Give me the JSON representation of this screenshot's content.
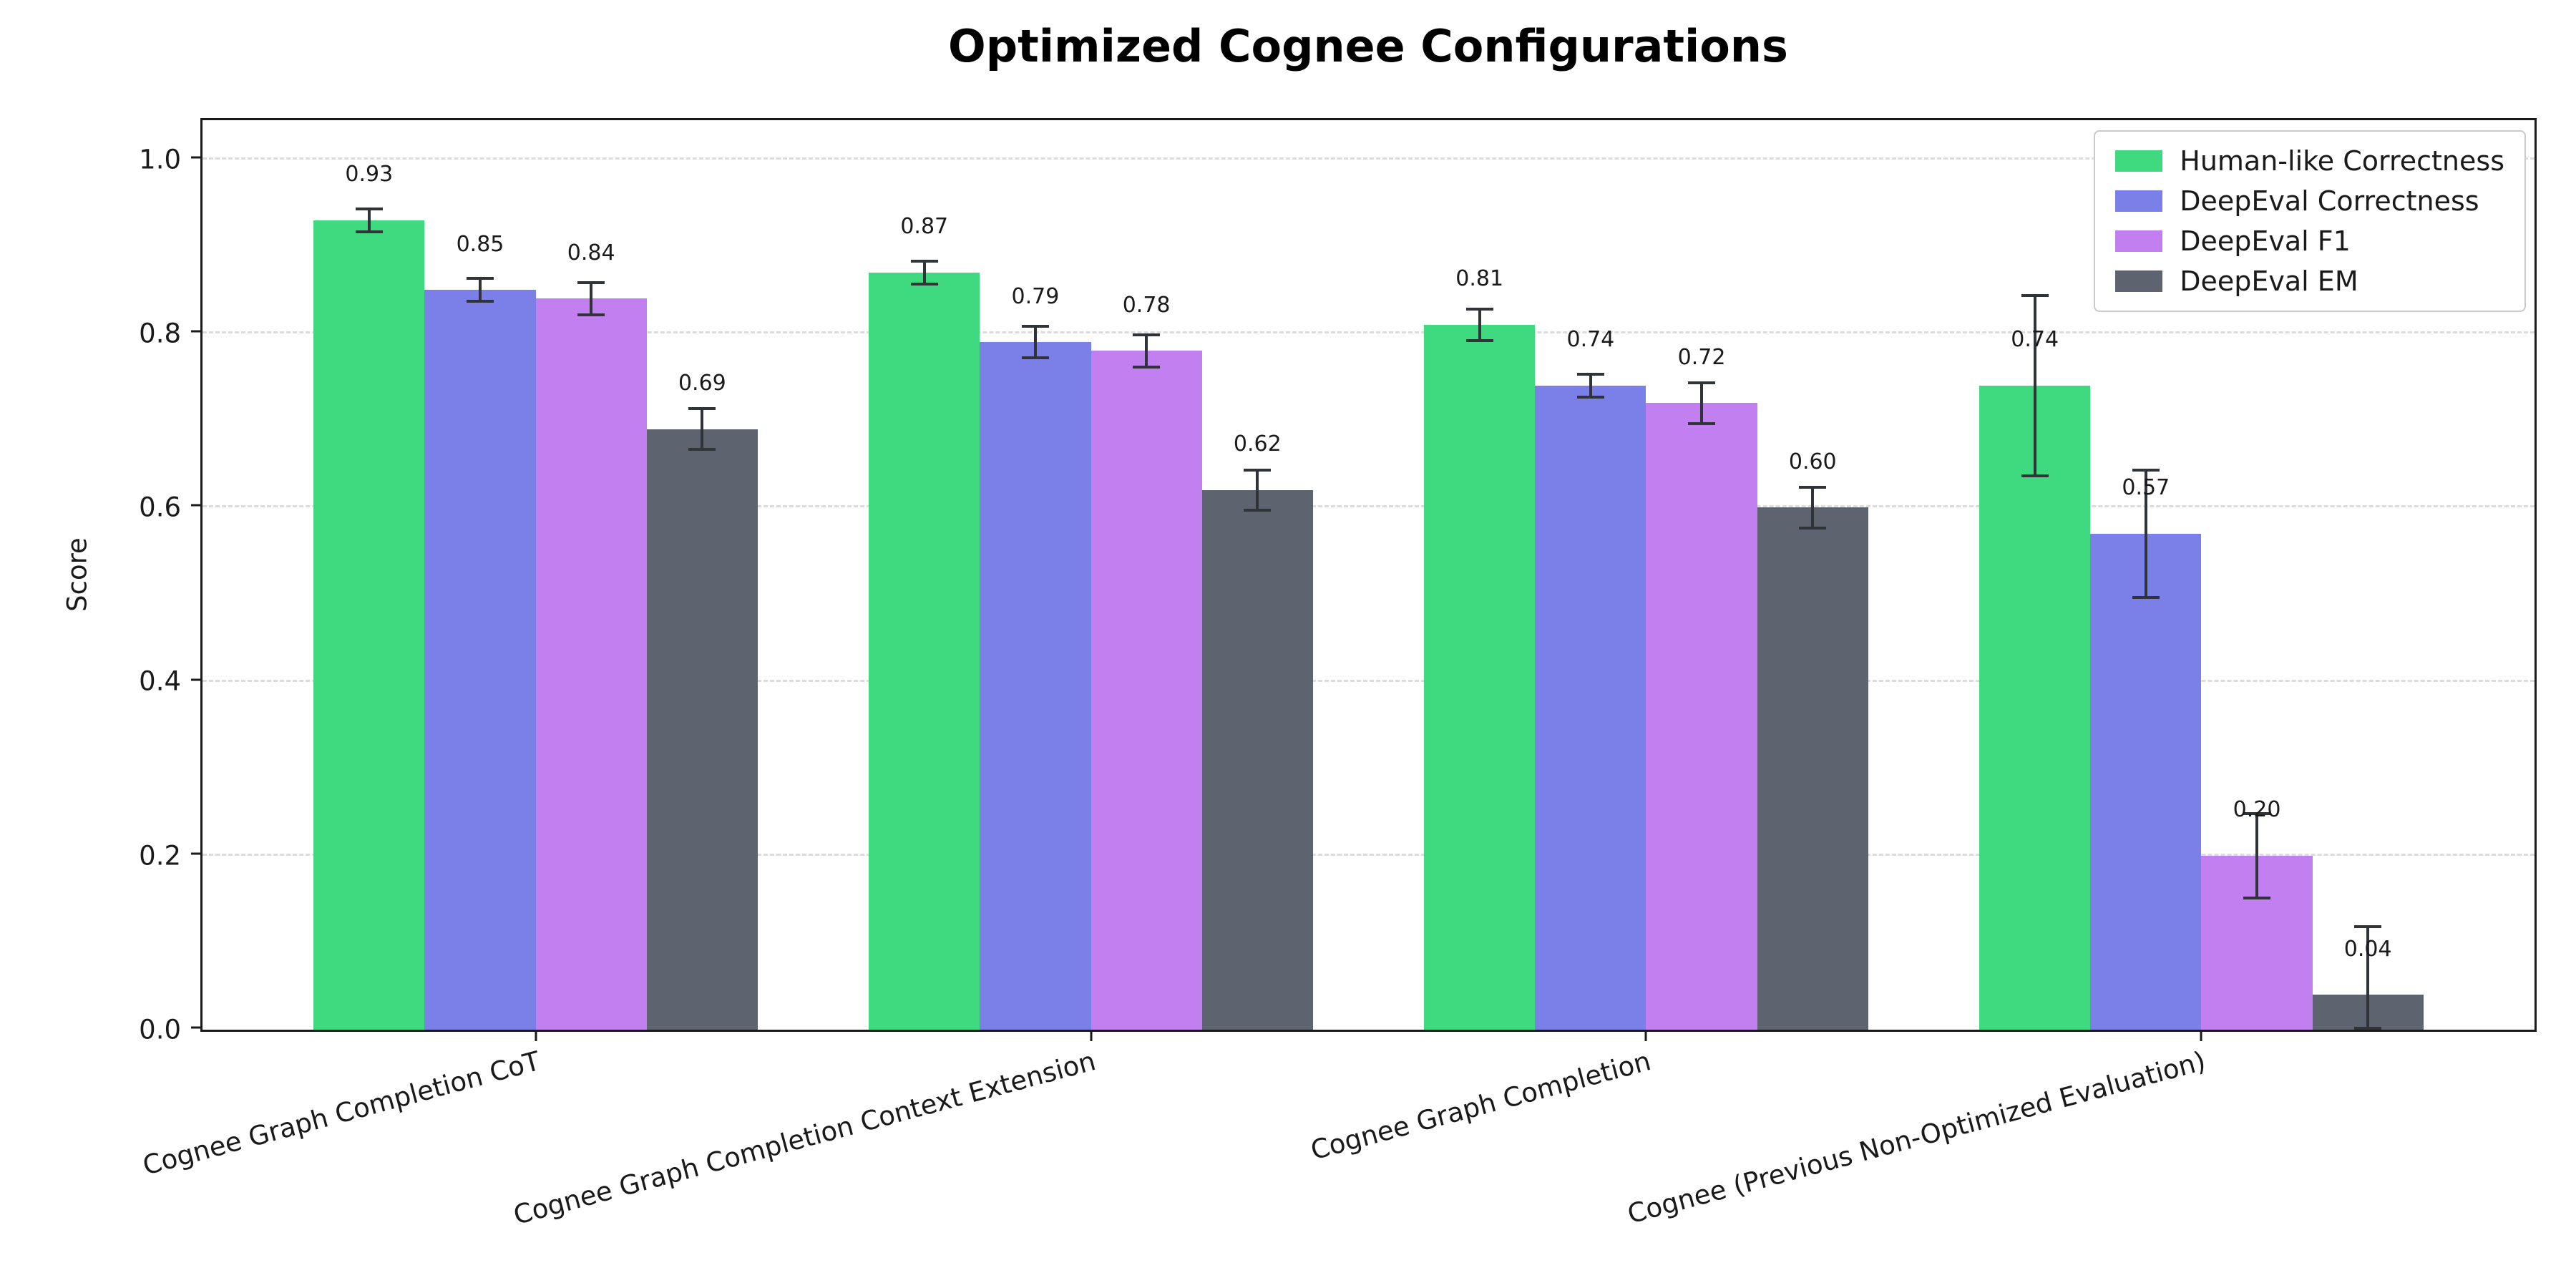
{
  "chart_data": {
    "type": "bar",
    "title": "Optimized Cognee Configurations",
    "ylabel": "Score",
    "xlabel": "",
    "categories": [
      "Cognee Graph Completion CoT",
      "Cognee Graph Completion Context Extension",
      "Cognee Graph Completion",
      "Cognee (Previous Non-Optimized Evaluation)"
    ],
    "series": [
      {
        "name": "Human-like Correctness",
        "color": "#3fd97f",
        "values": [
          0.93,
          0.87,
          0.81,
          0.74
        ],
        "errors": [
          0.015,
          0.015,
          0.02,
          0.105
        ]
      },
      {
        "name": "DeepEval Correctness",
        "color": "#7b80e8",
        "values": [
          0.85,
          0.79,
          0.74,
          0.57
        ],
        "errors": [
          0.015,
          0.02,
          0.015,
          0.075
        ]
      },
      {
        "name": "DeepEval F1",
        "color": "#c27ff0",
        "values": [
          0.84,
          0.78,
          0.72,
          0.2
        ],
        "errors": [
          0.02,
          0.02,
          0.025,
          0.05
        ]
      },
      {
        "name": "DeepEval EM",
        "color": "#5d6470",
        "values": [
          0.69,
          0.62,
          0.6,
          0.04
        ],
        "errors": [
          0.025,
          0.025,
          0.025,
          0.06
        ]
      }
    ],
    "ylim": [
      0,
      1.045
    ],
    "xlim": [
      -0.6,
      3.6
    ],
    "yticks": [
      0.0,
      0.2,
      0.4,
      0.6,
      0.8,
      1.0
    ],
    "bar_width_units": 0.2,
    "grid": "horizontal-dashed",
    "legend_position": "upper-right",
    "value_label_offset_units": 0.04,
    "value_label_decimals": 2
  },
  "style": {
    "background": "#ffffff",
    "grid_color": "#dcdcdc",
    "spine_color": "#1a1a1a",
    "error_color": "#303439",
    "text_color": "#1a1a1a",
    "legend_border": "#c9c9c9"
  }
}
